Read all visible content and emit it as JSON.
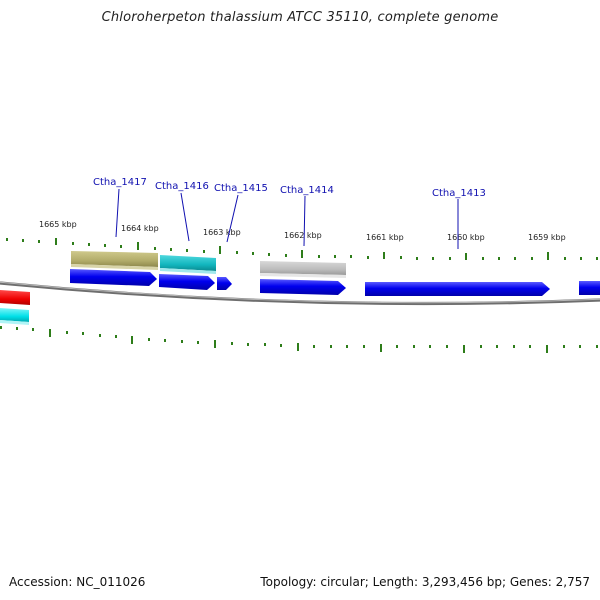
{
  "title": "Chloroherpeton thalassium ATCC 35110, complete genome",
  "footer": {
    "accession": "Accession: NC_011026",
    "summary": "Topology: circular; Length: 3,293,456 bp; Genes: 2,757"
  },
  "colors": {
    "cds": "#0000ee",
    "trna_or_hit_olive": "#b5b070",
    "teal": "#10b8c0",
    "gray_feature": "#bbbbbb",
    "red": "#ee0000",
    "cyan": "#00e0e8",
    "ruler": "#2e7d1a",
    "backbone": "#888888",
    "label": "#1010b0"
  },
  "ruler_labels": [
    {
      "text": "1665 kbp"
    },
    {
      "text": "1664 kbp"
    },
    {
      "text": "1663 kbp"
    },
    {
      "text": "1662 kbp"
    },
    {
      "text": "1661 kbp"
    },
    {
      "text": "1660 kbp"
    },
    {
      "text": "1659 kbp"
    }
  ],
  "genes": [
    {
      "name": "Ctha_1417"
    },
    {
      "name": "Ctha_1416"
    },
    {
      "name": "Ctha_1415"
    },
    {
      "name": "Ctha_1414"
    },
    {
      "name": "Ctha_1413"
    }
  ]
}
